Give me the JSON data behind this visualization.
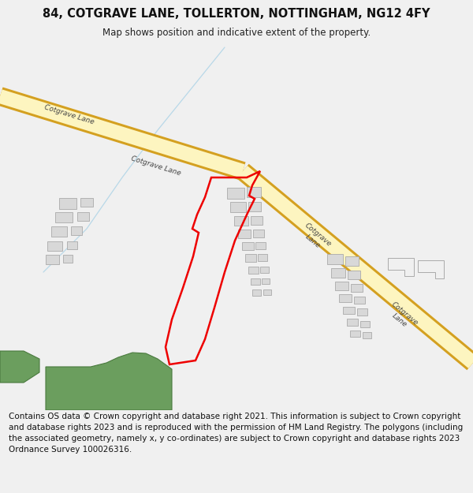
{
  "title": "84, COTGRAVE LANE, TOLLERTON, NOTTINGHAM, NG12 4FY",
  "subtitle": "Map shows position and indicative extent of the property.",
  "footer": "Contains OS data © Crown copyright and database right 2021. This information is subject to Crown copyright and database rights 2023 and is reproduced with the permission of HM Land Registry. The polygons (including the associated geometry, namely x, y co-ordinates) are subject to Crown copyright and database rights 2023 Ordnance Survey 100026316.",
  "bg_color": "#f0f0f0",
  "map_bg": "#ffffff",
  "road_fill": "#fdf5c0",
  "road_edge": "#d4a020",
  "building_fill": "#d8d8d8",
  "building_edge": "#aaaaaa",
  "green_fill": "#6b9e5e",
  "green_edge": "#4a7a3e",
  "plot_color": "#ee0000",
  "water_color": "#b8d8e8",
  "road_label_color": "#444444",
  "title_fontsize": 10.5,
  "subtitle_fontsize": 8.5,
  "footer_fontsize": 7.5
}
